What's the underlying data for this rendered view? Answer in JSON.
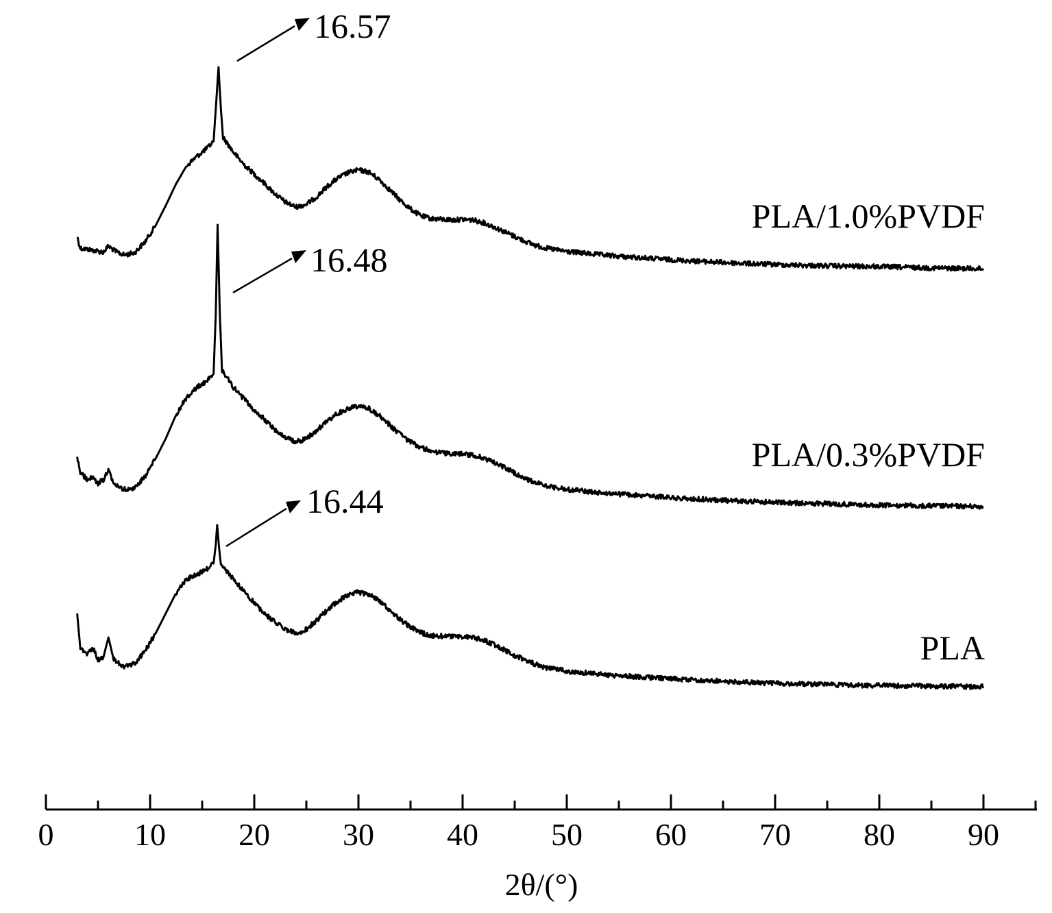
{
  "chart_data": {
    "type": "line",
    "xlabel": "2θ/(°)",
    "xlim": [
      0,
      95
    ],
    "xticks": [
      0,
      10,
      20,
      30,
      40,
      50,
      60,
      70,
      80,
      90
    ],
    "ylabel": "",
    "y_ticks_shown": false,
    "grid": false,
    "series": [
      {
        "name": "PLA/1.0%PVDF",
        "color": "#000000",
        "peak_label": "16.57",
        "points": [
          [
            3,
            345
          ],
          [
            3.3,
            362
          ],
          [
            4.5,
            365
          ],
          [
            5.5,
            368
          ],
          [
            6,
            359
          ],
          [
            6.7,
            367
          ],
          [
            7.5,
            372
          ],
          [
            8.5,
            369
          ],
          [
            9.5,
            353
          ],
          [
            10.5,
            330
          ],
          [
            11.5,
            300
          ],
          [
            12.5,
            268
          ],
          [
            13.5,
            242
          ],
          [
            14.5,
            228
          ],
          [
            15.5,
            216
          ],
          [
            16.1,
            206
          ],
          [
            16.3,
            160
          ],
          [
            16.57,
            98
          ],
          [
            16.8,
            160
          ],
          [
            17,
            200
          ],
          [
            18,
            222
          ],
          [
            19,
            240
          ],
          [
            20,
            254
          ],
          [
            21,
            268
          ],
          [
            22,
            283
          ],
          [
            23,
            295
          ],
          [
            24,
            302
          ],
          [
            25,
            298
          ],
          [
            26,
            287
          ],
          [
            27,
            272
          ],
          [
            28,
            260
          ],
          [
            29,
            252
          ],
          [
            30,
            248
          ],
          [
            31,
            251
          ],
          [
            32,
            262
          ],
          [
            33,
            277
          ],
          [
            34,
            292
          ],
          [
            35,
            305
          ],
          [
            36,
            315
          ],
          [
            37,
            319
          ],
          [
            38,
            320
          ],
          [
            39,
            321
          ],
          [
            40,
            320
          ],
          [
            41,
            321
          ],
          [
            42,
            325
          ],
          [
            43,
            331
          ],
          [
            44,
            338
          ],
          [
            45,
            345
          ],
          [
            46,
            352
          ],
          [
            47,
            358
          ],
          [
            48,
            362
          ],
          [
            50,
            367
          ],
          [
            52,
            370
          ],
          [
            55,
            374
          ],
          [
            60,
            379
          ],
          [
            65,
            383
          ],
          [
            70,
            386
          ],
          [
            75,
            388
          ],
          [
            80,
            389
          ],
          [
            85,
            391
          ],
          [
            90,
            392
          ]
        ]
      },
      {
        "name": "PLA/0.3%PVDF",
        "color": "#000000",
        "peak_label": "16.48",
        "points": [
          [
            3,
            665
          ],
          [
            3.3,
            690
          ],
          [
            4,
            700
          ],
          [
            4.5,
            695
          ],
          [
            5,
            705
          ],
          [
            5.5,
            700
          ],
          [
            6,
            685
          ],
          [
            6.5,
            705
          ],
          [
            7.5,
            714
          ],
          [
            8.5,
            712
          ],
          [
            9.5,
            695
          ],
          [
            10.5,
            670
          ],
          [
            11.5,
            640
          ],
          [
            12.5,
            605
          ],
          [
            13.5,
            580
          ],
          [
            14.5,
            565
          ],
          [
            15.5,
            555
          ],
          [
            16.1,
            545
          ],
          [
            16.3,
            460
          ],
          [
            16.48,
            328
          ],
          [
            16.7,
            460
          ],
          [
            16.9,
            540
          ],
          [
            18,
            565
          ],
          [
            19,
            582
          ],
          [
            20,
            598
          ],
          [
            21,
            612
          ],
          [
            22,
            627
          ],
          [
            23,
            638
          ],
          [
            24,
            645
          ],
          [
            25,
            640
          ],
          [
            26,
            628
          ],
          [
            27,
            615
          ],
          [
            28,
            603
          ],
          [
            29,
            596
          ],
          [
            30,
            592
          ],
          [
            31,
            596
          ],
          [
            32,
            606
          ],
          [
            33,
            620
          ],
          [
            34,
            634
          ],
          [
            35,
            645
          ],
          [
            36,
            653
          ],
          [
            37,
            658
          ],
          [
            38,
            661
          ],
          [
            39,
            662
          ],
          [
            40,
            662
          ],
          [
            41,
            664
          ],
          [
            42,
            668
          ],
          [
            43,
            674
          ],
          [
            44,
            682
          ],
          [
            45,
            690
          ],
          [
            46,
            698
          ],
          [
            47,
            704
          ],
          [
            48,
            709
          ],
          [
            50,
            714
          ],
          [
            52,
            717
          ],
          [
            55,
            721
          ],
          [
            60,
            726
          ],
          [
            65,
            730
          ],
          [
            70,
            733
          ],
          [
            75,
            735
          ],
          [
            80,
            737
          ],
          [
            85,
            738
          ],
          [
            90,
            739
          ]
        ]
      },
      {
        "name": "PLA",
        "color": "#000000",
        "peak_label": "16.44",
        "points": [
          [
            3,
            895
          ],
          [
            3.3,
            945
          ],
          [
            4,
            955
          ],
          [
            4.5,
            945
          ],
          [
            5,
            962
          ],
          [
            5.5,
            960
          ],
          [
            6,
            930
          ],
          [
            6.5,
            962
          ],
          [
            7.5,
            973
          ],
          [
            8.5,
            968
          ],
          [
            9.5,
            950
          ],
          [
            10.5,
            925
          ],
          [
            11.5,
            895
          ],
          [
            12.5,
            865
          ],
          [
            13.5,
            845
          ],
          [
            14.5,
            838
          ],
          [
            15.5,
            830
          ],
          [
            16.1,
            822
          ],
          [
            16.3,
            795
          ],
          [
            16.44,
            766
          ],
          [
            16.6,
            795
          ],
          [
            16.8,
            825
          ],
          [
            18,
            845
          ],
          [
            19,
            862
          ],
          [
            20,
            880
          ],
          [
            21,
            895
          ],
          [
            22,
            908
          ],
          [
            23,
            918
          ],
          [
            24,
            924
          ],
          [
            25,
            918
          ],
          [
            26,
            905
          ],
          [
            27,
            890
          ],
          [
            28,
            877
          ],
          [
            29,
            868
          ],
          [
            30,
            864
          ],
          [
            31,
            867
          ],
          [
            32,
            876
          ],
          [
            33,
            890
          ],
          [
            34,
            904
          ],
          [
            35,
            915
          ],
          [
            36,
            923
          ],
          [
            37,
            927
          ],
          [
            38,
            928
          ],
          [
            39,
            929
          ],
          [
            40,
            929
          ],
          [
            41,
            930
          ],
          [
            42,
            934
          ],
          [
            43,
            940
          ],
          [
            44,
            948
          ],
          [
            45,
            956
          ],
          [
            46,
            963
          ],
          [
            47,
            969
          ],
          [
            48,
            974
          ],
          [
            50,
            979
          ],
          [
            52,
            982
          ],
          [
            55,
            986
          ],
          [
            60,
            990
          ],
          [
            65,
            994
          ],
          [
            70,
            997
          ],
          [
            75,
            999
          ],
          [
            80,
            1000
          ],
          [
            85,
            1001
          ],
          [
            90,
            1002
          ]
        ]
      }
    ]
  }
}
